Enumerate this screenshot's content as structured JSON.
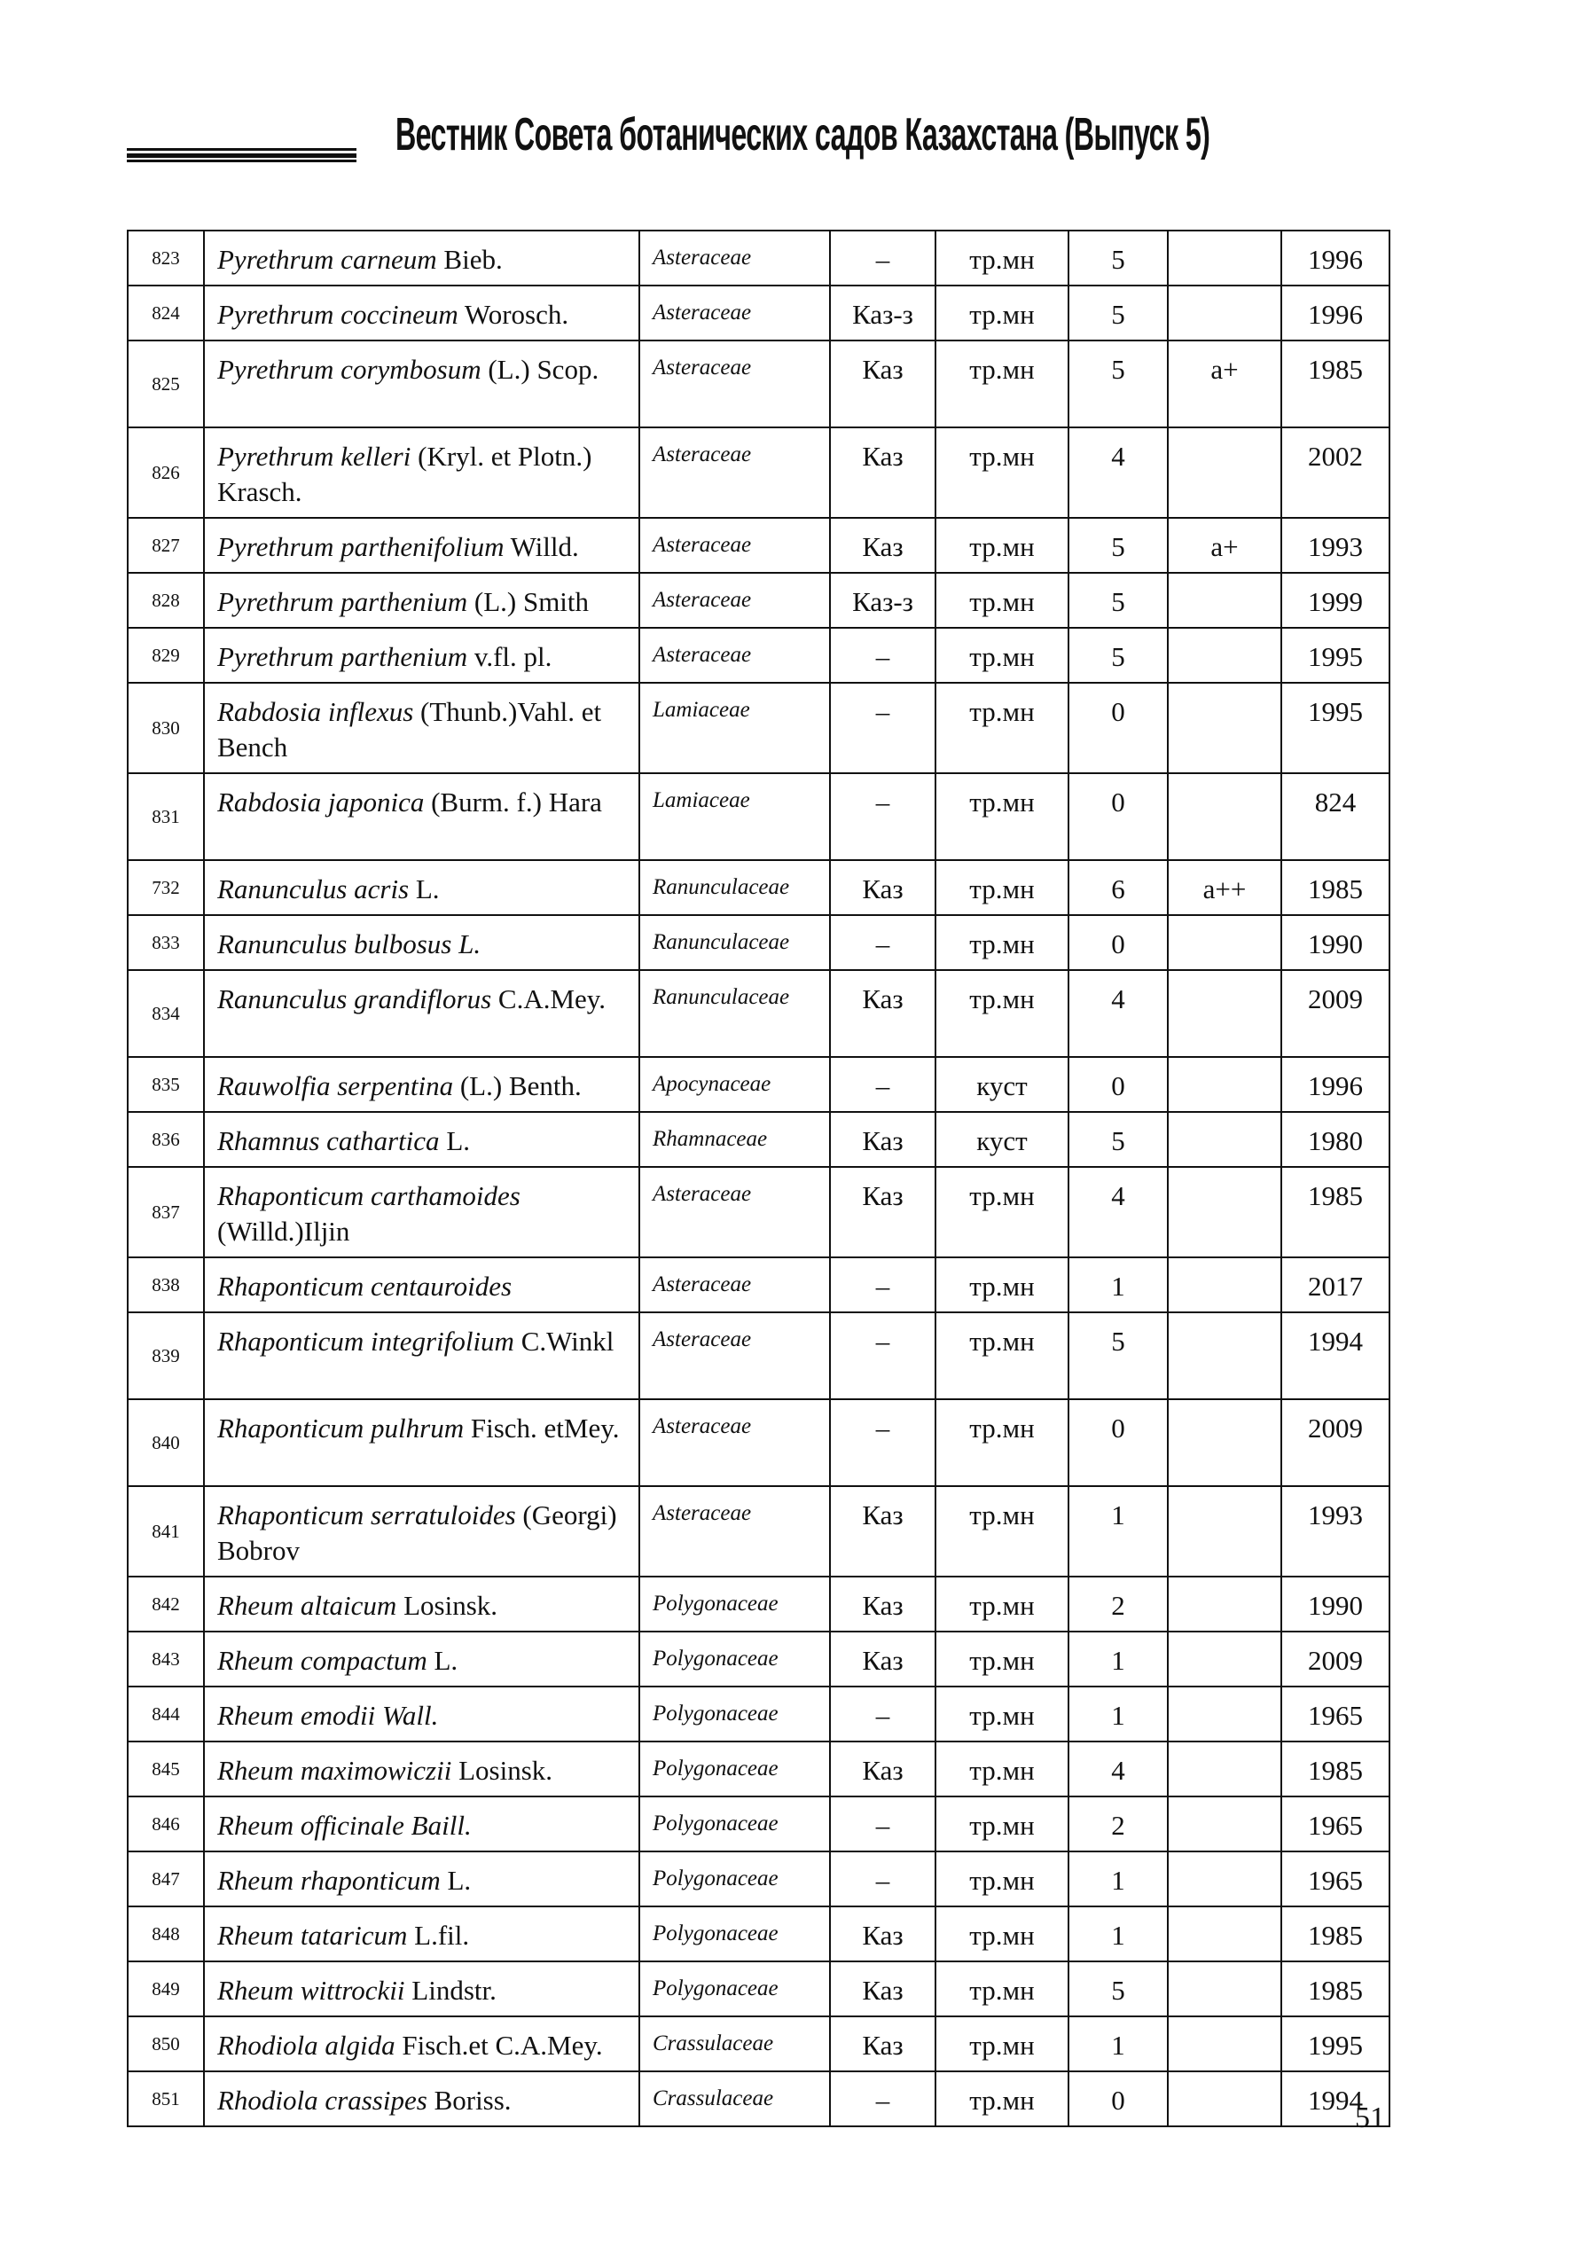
{
  "header": {
    "title": "Вестник Совета ботанических садов Казахстана (Выпуск 5)"
  },
  "rows": [
    {
      "no": "823",
      "italic": "Pyrethrum carneum",
      "plain": " Bieb.",
      "family": "Asteraceae",
      "status": "–",
      "form": "тр.мн",
      "score": "5",
      "mark": "",
      "year": "1996",
      "lines": 1
    },
    {
      "no": "824",
      "italic": "Pyrethrum coccineum",
      "plain": " Worosch.",
      "family": "Asteraceae",
      "status": "Каз-з",
      "form": "тр.мн",
      "score": "5",
      "mark": "",
      "year": "1996",
      "lines": 1
    },
    {
      "no": "825",
      "italic": "Pyrethrum corymbosum",
      "plain": " (L.) Scop.",
      "family": "Asteraceae",
      "status": "Каз",
      "form": "тр.мн",
      "score": "5",
      "mark": "а+",
      "year": "1985",
      "lines": 2
    },
    {
      "no": "826",
      "italic": "Pyrethrum kelleri",
      "plain": " (Kryl. et Plotn.) Krasch.",
      "family": "Asteraceae",
      "status": "Каз",
      "form": "тр.мн",
      "score": "4",
      "mark": "",
      "year": "2002",
      "lines": 2
    },
    {
      "no": "827",
      "italic": "Pyrethrum parthenifolium",
      "plain": " Willd.",
      "family": "Asteraceae",
      "status": "Каз",
      "form": "тр.мн",
      "score": "5",
      "mark": "а+",
      "year": "1993",
      "lines": 1
    },
    {
      "no": "828",
      "italic": "Pyrethrum parthenium",
      "plain": " (L.) Smith",
      "family": "Asteraceae",
      "status": "Каз-з",
      "form": "тр.мн",
      "score": "5",
      "mark": "",
      "year": "1999",
      "lines": 1
    },
    {
      "no": "829",
      "italic": "Pyrethrum parthenium",
      "plain": " v.fl. pl.",
      "family": "Asteraceae",
      "status": "–",
      "form": "тр.мн",
      "score": "5",
      "mark": "",
      "year": "1995",
      "lines": 1
    },
    {
      "no": "830",
      "italic": "Rabdosia inflexus",
      "plain": " (Thunb.)Vahl. et Bench",
      "family": "Lamiaceae",
      "status": "–",
      "form": "тр.мн",
      "score": "0",
      "mark": "",
      "year": "1995",
      "lines": 2
    },
    {
      "no": "831",
      "italic": "Rabdosia japonica",
      "plain": " (Burm. f.) Hara",
      "family": "Lamiaceae",
      "status": "–",
      "form": "тр.мн",
      "score": "0",
      "mark": "",
      "year": "824",
      "lines": 2
    },
    {
      "no": "732",
      "italic": "Ranunculus acris",
      "plain": " L.",
      "family": "Ranunculaceae",
      "status": "Каз",
      "form": "тр.мн",
      "score": "6",
      "mark": "а++",
      "year": "1985",
      "lines": 1
    },
    {
      "no": "833",
      "italic": "Ranunculus bulbosus L.",
      "plain": "",
      "family": "Ranunculaceae",
      "status": "–",
      "form": "тр.мн",
      "score": "0",
      "mark": "",
      "year": "1990",
      "lines": 1
    },
    {
      "no": "834",
      "italic": "Ranunculus grandiflorus",
      "plain": " C.A.Mey.",
      "family": "Ranunculaceae",
      "status": "Каз",
      "form": "тр.мн",
      "score": "4",
      "mark": "",
      "year": "2009",
      "lines": 2
    },
    {
      "no": "835",
      "italic": "Rauwolfia serpentina",
      "plain": " (L.) Benth.",
      "family": "Apocynaceae",
      "status": "–",
      "form": "куст",
      "score": "0",
      "mark": "",
      "year": "1996",
      "lines": 1
    },
    {
      "no": "836",
      "italic": "Rhamnus cathartica",
      "plain": " L.",
      "family": "Rhamnaceae",
      "status": "Каз",
      "form": "куст",
      "score": "5",
      "mark": "",
      "year": "1980",
      "lines": 1
    },
    {
      "no": "837",
      "italic": "Rhaponticum carthamoides",
      "plain": " (Willd.)Iljin",
      "family": "Asteraceae",
      "status": "Каз",
      "form": "тр.мн",
      "score": "4",
      "mark": "",
      "year": "1985",
      "lines": 2
    },
    {
      "no": "838",
      "italic": "Rhaponticum centauroides",
      "plain": "",
      "family": "Asteraceae",
      "status": "–",
      "form": "тр.мн",
      "score": "1",
      "mark": "",
      "year": "2017",
      "lines": 1
    },
    {
      "no": "839",
      "italic": "Rhaponticum integrifolium",
      "plain": " C.Winkl",
      "family": "Asteraceae",
      "status": "–",
      "form": "тр.мн",
      "score": "5",
      "mark": "",
      "year": "1994",
      "lines": 2
    },
    {
      "no": "840",
      "italic": "Rhaponticum pulhrum",
      "plain": " Fisch. etMey.",
      "family": "Asteraceae",
      "status": "–",
      "form": "тр.мн",
      "score": "0",
      "mark": "",
      "year": "2009",
      "lines": 2
    },
    {
      "no": "841",
      "italic": "Rhaponticum serratuloides",
      "plain": " (Georgi) Bobrov",
      "family": "Asteraceae",
      "status": "Каз",
      "form": "тр.мн",
      "score": "1",
      "mark": "",
      "year": "1993",
      "lines": 2
    },
    {
      "no": "842",
      "italic": "Rheum altaicum",
      "plain": " Losinsk.",
      "family": "Polygonaceae",
      "status": "Каз",
      "form": "тр.мн",
      "score": "2",
      "mark": "",
      "year": "1990",
      "lines": 1
    },
    {
      "no": "843",
      "italic": "Rheum compactum",
      "plain": " L.",
      "family": "Polygonaceae",
      "status": "Каз",
      "form": "тр.мн",
      "score": "1",
      "mark": "",
      "year": "2009",
      "lines": 1
    },
    {
      "no": "844",
      "italic": "Rheum emodii Wall.",
      "plain": "",
      "family": "Polygonaceae",
      "status": "–",
      "form": "тр.мн",
      "score": "1",
      "mark": "",
      "year": "1965",
      "lines": 1
    },
    {
      "no": "845",
      "italic": "Rheum maximowiczii",
      "plain": " Losinsk.",
      "family": "Polygonaceae",
      "status": "Каз",
      "form": "тр.мн",
      "score": "4",
      "mark": "",
      "year": "1985",
      "lines": 1
    },
    {
      "no": "846",
      "italic": "Rheum officinale Baill.",
      "plain": "",
      "family": "Polygonaceae",
      "status": "–",
      "form": "тр.мн",
      "score": "2",
      "mark": "",
      "year": "1965",
      "lines": 1
    },
    {
      "no": "847",
      "italic": "Rheum rhaponticum",
      "plain": " L.",
      "family": "Polygonaceae",
      "status": "–",
      "form": "тр.мн",
      "score": "1",
      "mark": "",
      "year": "1965",
      "lines": 1
    },
    {
      "no": "848",
      "italic": "Rheum tataricum",
      "plain": " L.fil.",
      "family": "Polygonaceae",
      "status": "Каз",
      "form": "тр.мн",
      "score": "1",
      "mark": "",
      "year": "1985",
      "lines": 1
    },
    {
      "no": "849",
      "italic": "Rheum wittrockii",
      "plain": " Lindstr.",
      "family": "Polygonaceae",
      "status": "Каз",
      "form": "тр.мн",
      "score": "5",
      "mark": "",
      "year": "1985",
      "lines": 1
    },
    {
      "no": "850",
      "italic": "Rhodiola algida",
      "plain": " Fisch.et C.A.Mey.",
      "family": "Crassulaceae",
      "status": "Каз",
      "form": "тр.мн",
      "score": "1",
      "mark": "",
      "year": "1995",
      "lines": 1
    },
    {
      "no": "851",
      "italic": "Rhodiola crassipes",
      "plain": " Boriss.",
      "family": "Crassulaceae",
      "status": "–",
      "form": "тр.мн",
      "score": "0",
      "mark": "",
      "year": "1994",
      "lines": 1
    }
  ],
  "footer": {
    "page_number": "51"
  }
}
